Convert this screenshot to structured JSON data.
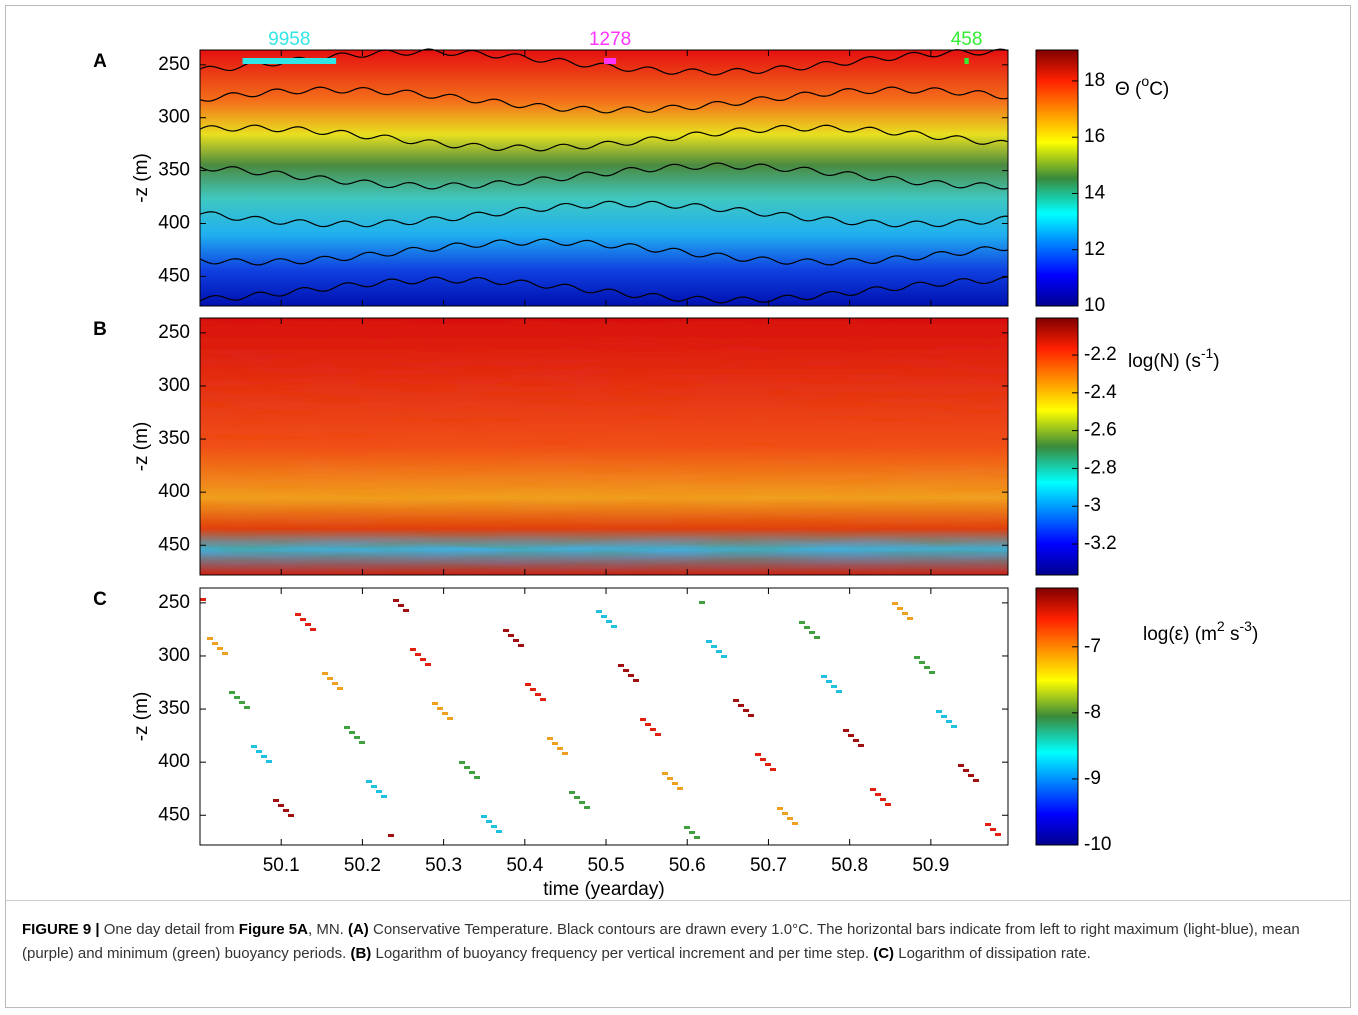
{
  "figure": {
    "annotations": [
      {
        "label": "9958",
        "value": 9958,
        "x": 50.11,
        "color": "#33e6e6"
      },
      {
        "label": "1278",
        "value": 1278,
        "x": 50.505,
        "color": "#ff33ff"
      },
      {
        "label": "458",
        "value": 458,
        "x": 50.944,
        "color": "#33ee33"
      }
    ],
    "xlim": [
      50.0,
      50.995
    ],
    "xticks": [
      50.1,
      50.2,
      50.3,
      50.4,
      50.5,
      50.6,
      50.7,
      50.8,
      50.9
    ],
    "xlabel": "time (yearday)",
    "panels": [
      {
        "label": "A",
        "ylabel": "-z (m)",
        "ylim": [
          236,
          478
        ],
        "yticks": [
          250,
          300,
          350,
          400,
          450
        ],
        "colorbar": {
          "lim": [
            10,
            19.1
          ],
          "ticks": [
            10,
            12,
            14,
            16,
            18
          ],
          "label": [
            {
              "text": "Θ ("
            },
            {
              "text": "o",
              "sup": true
            },
            {
              "text": "C)"
            }
          ]
        }
      },
      {
        "label": "B",
        "ylabel": "-z (m)",
        "ylim": [
          236,
          478
        ],
        "yticks": [
          250,
          300,
          350,
          400,
          450
        ],
        "colorbar": {
          "lim": [
            -3.364,
            -2.004
          ],
          "ticks": [
            -2.2,
            -2.4,
            -2.6,
            -2.8,
            -3,
            -3.2
          ],
          "label": [
            {
              "text": "log(N) (s"
            },
            {
              "text": "-1",
              "sup": true
            },
            {
              "text": ")"
            }
          ]
        }
      },
      {
        "label": "C",
        "ylabel": "-z (m)",
        "ylim": [
          236,
          478
        ],
        "yticks": [
          250,
          300,
          350,
          400,
          450
        ],
        "colorbar": {
          "lim": [
            -10,
            -6.11
          ],
          "ticks": [
            -7,
            -8,
            -9,
            -10
          ],
          "label": [
            {
              "text": "log(ε) (m"
            },
            {
              "text": "2",
              "sup": true
            },
            {
              "text": " s"
            },
            {
              "text": "-3",
              "sup": true
            },
            {
              "text": ")"
            }
          ]
        }
      }
    ]
  },
  "caption": [
    {
      "text": "FIGURE 9 | ",
      "bold": true
    },
    {
      "text": "One day detail from "
    },
    {
      "text": "Figure 5A",
      "bold": true
    },
    {
      "text": ", MN. "
    },
    {
      "text": "(A)",
      "bold": true
    },
    {
      "text": " Conservative Temperature. Black contours are drawn every 1.0°C. The horizontal bars indicate from left to right maximum (light-blue), mean (purple) and minimum (green) buoyancy periods. "
    },
    {
      "text": "(B)",
      "bold": true
    },
    {
      "text": " Logarithm of buoyancy frequency per vertical increment and per time step. "
    },
    {
      "text": "(C)",
      "bold": true
    },
    {
      "text": " Logarithm of dissipation rate."
    }
  ]
}
